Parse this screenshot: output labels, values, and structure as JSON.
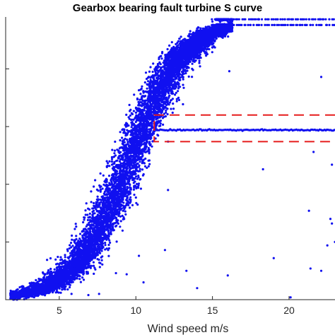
{
  "chart_data": {
    "type": "scatter",
    "title": "Gearbox bearing fault turbine S curve",
    "xlabel": "Wind speed m/s",
    "ylabel": "",
    "xlim": [
      1.5,
      23
    ],
    "ylim": [
      0,
      2.45
    ],
    "x_ticks": [
      5,
      10,
      15,
      20
    ],
    "x_tick_labels": [
      "5",
      "10",
      "15",
      "20"
    ],
    "y_ticks": [
      0.5,
      1.0,
      1.5,
      2.0
    ],
    "grid": false,
    "legend": "none",
    "colors": {
      "points": "#1010f0",
      "highlight": "#e51c1c"
    },
    "series": [
      {
        "role": "normal power curve",
        "curve": {
          "form": "logistic",
          "x0": 9.6,
          "k": 0.55,
          "ymax": 2.43,
          "spread": 0.09,
          "rated_power_levels": [
            2.43,
            2.38
          ]
        },
        "sample_x": [
          2,
          3,
          4,
          5,
          6,
          7,
          8,
          9,
          10,
          11,
          12,
          13,
          14,
          15,
          16,
          18,
          20,
          22
        ],
        "sample_y": [
          0.0,
          0.02,
          0.06,
          0.13,
          0.27,
          0.48,
          0.8,
          1.17,
          1.54,
          1.85,
          2.08,
          2.24,
          2.35,
          2.41,
          2.43,
          2.43,
          2.43,
          2.43
        ]
      },
      {
        "role": "curtailed segment",
        "x_range": [
          11.2,
          23
        ],
        "y_level": 1.47
      },
      {
        "role": "outliers",
        "points": [
          [
            16.1,
            1.98
          ],
          [
            22.1,
            1.93
          ],
          [
            21.6,
            1.28
          ],
          [
            22.8,
            1.17
          ],
          [
            18.3,
            1.13
          ],
          [
            12.1,
            0.95
          ],
          [
            21.3,
            0.77
          ],
          [
            22.7,
            0.7
          ],
          [
            22.8,
            0.66
          ],
          [
            23.0,
            0.5
          ],
          [
            11.9,
            0.43
          ],
          [
            10.2,
            0.38
          ],
          [
            19.0,
            0.36
          ],
          [
            21.4,
            0.27
          ],
          [
            22.1,
            0.25
          ],
          [
            13.3,
            0.25
          ],
          [
            16.0,
            0.21
          ],
          [
            8.7,
            0.23
          ],
          [
            14.0,
            0.1
          ],
          [
            7.6,
            0.05
          ],
          [
            6.9,
            0.04
          ],
          [
            5.8,
            0.05
          ],
          [
            5.1,
            0.06
          ],
          [
            12.4,
            1.62
          ],
          [
            12.1,
            1.37
          ],
          [
            11.9,
            1.79
          ],
          [
            22.5,
            0.47
          ],
          [
            9.4,
            0.22
          ],
          [
            10.5,
            0.15
          ],
          [
            20.1,
            0.02
          ]
        ]
      }
    ],
    "highlight_region": {
      "style": "dashed",
      "x_range": [
        11.2,
        23
      ],
      "y_range": [
        1.37,
        1.6
      ]
    }
  }
}
